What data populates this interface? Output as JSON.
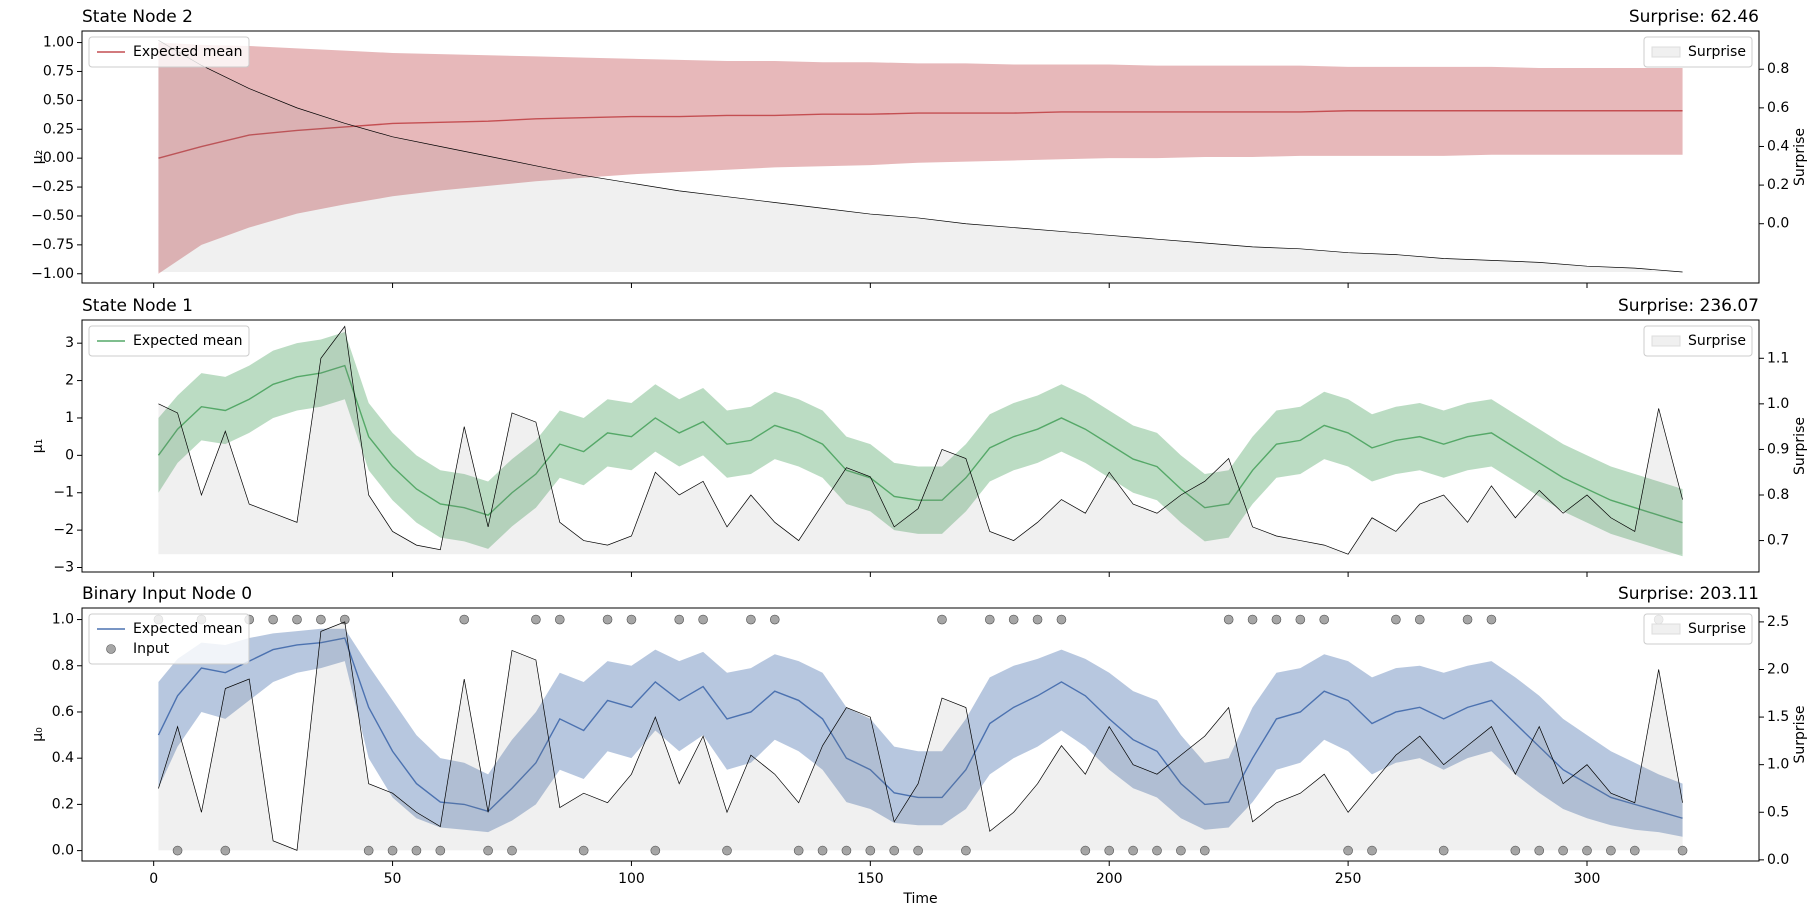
{
  "chart_data": [
    {
      "type": "line",
      "title": "State Node 2",
      "surprise_title": "Surprise: 62.46",
      "ylabel": "μ₂",
      "y2label": "Surprise",
      "legend": "upper left",
      "legend2": "upper right",
      "x": [
        1,
        10,
        20,
        30,
        40,
        50,
        60,
        70,
        80,
        90,
        100,
        110,
        120,
        130,
        140,
        150,
        160,
        170,
        180,
        190,
        200,
        210,
        220,
        230,
        240,
        250,
        260,
        270,
        280,
        290,
        300,
        310,
        320
      ],
      "series": [
        {
          "name": "Expected mean",
          "type": "line",
          "color": "#c44e52",
          "values": [
            0,
            0.1,
            0.2,
            0.24,
            0.27,
            0.3,
            0.31,
            0.32,
            0.34,
            0.35,
            0.36,
            0.36,
            0.37,
            0.37,
            0.38,
            0.38,
            0.39,
            0.39,
            0.39,
            0.4,
            0.4,
            0.4,
            0.4,
            0.4,
            0.4,
            0.41,
            0.41,
            0.41,
            0.41,
            0.41,
            0.41,
            0.41,
            0.41
          ],
          "upper": [
            1.0,
            0.98,
            0.97,
            0.95,
            0.93,
            0.91,
            0.9,
            0.89,
            0.88,
            0.87,
            0.86,
            0.85,
            0.84,
            0.84,
            0.83,
            0.83,
            0.82,
            0.82,
            0.81,
            0.81,
            0.81,
            0.8,
            0.8,
            0.8,
            0.8,
            0.79,
            0.79,
            0.79,
            0.79,
            0.78,
            0.78,
            0.78,
            0.78
          ],
          "lower": [
            -1.0,
            -0.75,
            -0.6,
            -0.48,
            -0.4,
            -0.33,
            -0.28,
            -0.24,
            -0.2,
            -0.17,
            -0.14,
            -0.12,
            -0.1,
            -0.08,
            -0.07,
            -0.06,
            -0.04,
            -0.03,
            -0.02,
            -0.01,
            0,
            0,
            0.01,
            0.01,
            0.02,
            0.02,
            0.02,
            0.02,
            0.03,
            0.03,
            0.03,
            0.03,
            0.03
          ]
        },
        {
          "name": "Surprise",
          "type": "area",
          "axis": "y2",
          "color": "#000000",
          "values": [
            0.95,
            0.82,
            0.7,
            0.6,
            0.52,
            0.45,
            0.4,
            0.35,
            0.3,
            0.25,
            0.21,
            0.17,
            0.14,
            0.11,
            0.08,
            0.05,
            0.03,
            0.0,
            -0.02,
            -0.04,
            -0.06,
            -0.08,
            -0.1,
            -0.12,
            -0.13,
            -0.15,
            -0.16,
            -0.18,
            -0.19,
            -0.2,
            -0.22,
            -0.23,
            -0.25
          ]
        }
      ],
      "ylim": [
        -1.08,
        1.1
      ],
      "yticks": [
        {
          "value": -1,
          "label": "−1.00"
        },
        {
          "value": -0.75,
          "label": "−0.75"
        },
        {
          "value": -0.5,
          "label": "−0.50"
        },
        {
          "value": -0.25,
          "label": "−0.25"
        },
        {
          "value": 0,
          "label": "0.00"
        },
        0.25,
        {
          "value": 0.5,
          "label": "0.50"
        },
        0.75,
        {
          "value": 1,
          "label": "1.00"
        }
      ],
      "y2lim": [
        -0.307,
        0.998
      ],
      "y2ticks": [
        {
          "value": 0,
          "label": "0.0"
        },
        0.2,
        0.4,
        0.6,
        0.8
      ]
    },
    {
      "type": "line",
      "title": "State Node 1",
      "surprise_title": "Surprise: 236.07",
      "ylabel": "μ₁",
      "y2label": "Surprise",
      "legend": "upper left",
      "legend2": "upper right",
      "x": [
        1,
        5,
        10,
        15,
        20,
        25,
        30,
        35,
        40,
        45,
        50,
        55,
        60,
        65,
        70,
        75,
        80,
        85,
        90,
        95,
        100,
        105,
        110,
        115,
        120,
        125,
        130,
        135,
        140,
        145,
        150,
        155,
        160,
        165,
        170,
        175,
        180,
        185,
        190,
        195,
        200,
        205,
        210,
        215,
        220,
        225,
        230,
        235,
        240,
        245,
        250,
        255,
        260,
        265,
        270,
        275,
        280,
        285,
        290,
        295,
        300,
        305,
        310,
        315,
        320
      ],
      "series": [
        {
          "name": "Expected mean",
          "type": "line",
          "color": "#55a868",
          "values": [
            0,
            0.7,
            1.3,
            1.2,
            1.5,
            1.9,
            2.1,
            2.2,
            2.4,
            0.5,
            -0.3,
            -0.9,
            -1.3,
            -1.4,
            -1.6,
            -1.0,
            -0.5,
            0.3,
            0.1,
            0.6,
            0.5,
            1.0,
            0.6,
            0.9,
            0.3,
            0.4,
            0.8,
            0.6,
            0.3,
            -0.4,
            -0.6,
            -1.1,
            -1.2,
            -1.2,
            -0.6,
            0.2,
            0.5,
            0.7,
            1.0,
            0.7,
            0.3,
            -0.1,
            -0.3,
            -0.9,
            -1.4,
            -1.3,
            -0.4,
            0.3,
            0.4,
            0.8,
            0.6,
            0.2,
            0.4,
            0.5,
            0.3,
            0.5,
            0.6,
            0.2,
            -0.2,
            -0.6,
            -0.9,
            -1.2,
            -1.4,
            -1.6,
            -1.8
          ],
          "upper": [
            1.0,
            1.6,
            2.2,
            2.1,
            2.4,
            2.8,
            3.0,
            3.1,
            3.3,
            1.4,
            0.6,
            0.0,
            -0.4,
            -0.5,
            -0.7,
            -0.1,
            0.4,
            1.2,
            1.0,
            1.5,
            1.4,
            1.9,
            1.5,
            1.8,
            1.2,
            1.3,
            1.7,
            1.5,
            1.2,
            0.5,
            0.3,
            -0.2,
            -0.3,
            -0.3,
            0.3,
            1.1,
            1.4,
            1.6,
            1.9,
            1.6,
            1.2,
            0.8,
            0.6,
            0.0,
            -0.5,
            -0.4,
            0.5,
            1.2,
            1.3,
            1.7,
            1.5,
            1.1,
            1.3,
            1.4,
            1.2,
            1.4,
            1.5,
            1.1,
            0.7,
            0.3,
            0.0,
            -0.3,
            -0.5,
            -0.7,
            -0.9
          ],
          "lower": [
            -1.0,
            -0.2,
            0.4,
            0.3,
            0.6,
            1.0,
            1.2,
            1.3,
            1.5,
            -0.4,
            -1.2,
            -1.8,
            -2.2,
            -2.3,
            -2.5,
            -1.9,
            -1.4,
            -0.6,
            -0.8,
            -0.3,
            -0.4,
            0.1,
            -0.3,
            0.0,
            -0.6,
            -0.5,
            -0.1,
            -0.3,
            -0.6,
            -1.3,
            -1.5,
            -2.0,
            -2.1,
            -2.1,
            -1.5,
            -0.7,
            -0.4,
            -0.2,
            0.1,
            -0.2,
            -0.6,
            -1.0,
            -1.2,
            -1.8,
            -2.3,
            -2.2,
            -1.3,
            -0.6,
            -0.5,
            -0.1,
            -0.3,
            -0.7,
            -0.5,
            -0.4,
            -0.6,
            -0.4,
            -0.3,
            -0.7,
            -1.1,
            -1.5,
            -1.8,
            -2.1,
            -2.3,
            -2.5,
            -2.7
          ]
        },
        {
          "name": "Surprise",
          "type": "area",
          "axis": "y2",
          "color": "#000000",
          "values": [
            1.0,
            0.98,
            0.8,
            0.94,
            0.78,
            0.76,
            0.74,
            1.1,
            1.17,
            0.8,
            0.72,
            0.69,
            0.68,
            0.95,
            0.73,
            0.98,
            0.96,
            0.74,
            0.7,
            0.69,
            0.71,
            0.85,
            0.8,
            0.83,
            0.73,
            0.8,
            0.74,
            0.7,
            0.78,
            0.86,
            0.84,
            0.73,
            0.77,
            0.9,
            0.88,
            0.72,
            0.7,
            0.74,
            0.79,
            0.76,
            0.85,
            0.78,
            0.76,
            0.8,
            0.83,
            0.88,
            0.73,
            0.71,
            0.7,
            0.69,
            0.67,
            0.75,
            0.72,
            0.78,
            0.8,
            0.74,
            0.82,
            0.75,
            0.81,
            0.76,
            0.8,
            0.75,
            0.72,
            0.99,
            0.79
          ]
        }
      ],
      "ylim": [
        -3.12,
        3.62
      ],
      "yticks": [
        {
          "value": -3,
          "label": "−3"
        },
        {
          "value": -2,
          "label": "−2"
        },
        {
          "value": -1,
          "label": "−1"
        },
        0,
        1,
        2,
        3
      ],
      "y2lim": [
        0.631,
        1.184
      ],
      "y2ticks": [
        0.7,
        0.8,
        0.9,
        {
          "value": 1,
          "label": "1.0"
        },
        1.1
      ]
    },
    {
      "type": "line",
      "title": "Binary Input Node 0",
      "surprise_title": "Surprise: 203.11",
      "ylabel": "μ₀",
      "y2label": "Surprise",
      "xlabel": "Time",
      "legend": "upper left",
      "legend2": "upper right",
      "x": [
        1,
        5,
        10,
        15,
        20,
        25,
        30,
        35,
        40,
        45,
        50,
        55,
        60,
        65,
        70,
        75,
        80,
        85,
        90,
        95,
        100,
        105,
        110,
        115,
        120,
        125,
        130,
        135,
        140,
        145,
        150,
        155,
        160,
        165,
        170,
        175,
        180,
        185,
        190,
        195,
        200,
        205,
        210,
        215,
        220,
        225,
        230,
        235,
        240,
        245,
        250,
        255,
        260,
        265,
        270,
        275,
        280,
        285,
        290,
        295,
        300,
        305,
        310,
        315,
        320
      ],
      "series": [
        {
          "name": "Expected mean",
          "type": "line",
          "color": "#4c72b0",
          "values": [
            0.5,
            0.67,
            0.79,
            0.77,
            0.82,
            0.87,
            0.89,
            0.9,
            0.92,
            0.62,
            0.43,
            0.29,
            0.21,
            0.2,
            0.17,
            0.27,
            0.38,
            0.57,
            0.52,
            0.65,
            0.62,
            0.73,
            0.65,
            0.71,
            0.57,
            0.6,
            0.69,
            0.65,
            0.57,
            0.4,
            0.35,
            0.25,
            0.23,
            0.23,
            0.35,
            0.55,
            0.62,
            0.67,
            0.73,
            0.67,
            0.57,
            0.48,
            0.43,
            0.29,
            0.2,
            0.21,
            0.4,
            0.57,
            0.6,
            0.69,
            0.65,
            0.55,
            0.6,
            0.62,
            0.57,
            0.62,
            0.65,
            0.55,
            0.45,
            0.35,
            0.29,
            0.23,
            0.2,
            0.17,
            0.14
          ],
          "upper": [
            0.73,
            0.83,
            0.9,
            0.89,
            0.92,
            0.94,
            0.95,
            0.96,
            0.96,
            0.8,
            0.65,
            0.5,
            0.4,
            0.38,
            0.33,
            0.48,
            0.6,
            0.77,
            0.73,
            0.82,
            0.8,
            0.87,
            0.82,
            0.86,
            0.77,
            0.79,
            0.85,
            0.82,
            0.77,
            0.62,
            0.57,
            0.45,
            0.43,
            0.43,
            0.57,
            0.75,
            0.8,
            0.83,
            0.87,
            0.83,
            0.77,
            0.69,
            0.65,
            0.5,
            0.38,
            0.4,
            0.62,
            0.77,
            0.79,
            0.85,
            0.82,
            0.75,
            0.79,
            0.8,
            0.77,
            0.8,
            0.82,
            0.75,
            0.67,
            0.57,
            0.5,
            0.43,
            0.38,
            0.33,
            0.29
          ],
          "lower": [
            0.27,
            0.45,
            0.6,
            0.57,
            0.65,
            0.73,
            0.77,
            0.79,
            0.82,
            0.4,
            0.23,
            0.14,
            0.1,
            0.09,
            0.08,
            0.13,
            0.2,
            0.35,
            0.31,
            0.43,
            0.4,
            0.52,
            0.43,
            0.5,
            0.35,
            0.38,
            0.48,
            0.43,
            0.35,
            0.21,
            0.18,
            0.12,
            0.11,
            0.11,
            0.18,
            0.33,
            0.4,
            0.45,
            0.52,
            0.45,
            0.35,
            0.27,
            0.23,
            0.14,
            0.09,
            0.1,
            0.21,
            0.35,
            0.38,
            0.48,
            0.43,
            0.33,
            0.38,
            0.4,
            0.35,
            0.4,
            0.43,
            0.33,
            0.25,
            0.18,
            0.14,
            0.11,
            0.09,
            0.08,
            0.06
          ]
        },
        {
          "name": "Input",
          "type": "scatter",
          "color": "#808080",
          "values": [
            1,
            0,
            1,
            0,
            1,
            1,
            1,
            1,
            1,
            0,
            0,
            0,
            0,
            1,
            0,
            0,
            1,
            1,
            0,
            1,
            1,
            0,
            1,
            1,
            0,
            1,
            1,
            0,
            0,
            0,
            0,
            0,
            0,
            1,
            0,
            1,
            1,
            1,
            1,
            0,
            0,
            0,
            0,
            0,
            0,
            1,
            1,
            1,
            1,
            1,
            0,
            0,
            1,
            1,
            0,
            1,
            1,
            0,
            0,
            0,
            0,
            0,
            0,
            1,
            0
          ]
        },
        {
          "name": "Surprise",
          "type": "area",
          "axis": "y2",
          "color": "#000000",
          "values": [
            0.75,
            1.4,
            0.5,
            1.8,
            1.9,
            0.2,
            0.1,
            2.4,
            2.5,
            0.8,
            0.7,
            0.5,
            0.35,
            1.9,
            0.5,
            2.2,
            2.1,
            0.55,
            0.7,
            0.6,
            0.9,
            1.5,
            0.8,
            1.3,
            0.5,
            1.1,
            0.9,
            0.6,
            1.2,
            1.6,
            1.5,
            0.4,
            0.8,
            1.7,
            1.6,
            0.3,
            0.5,
            0.8,
            1.2,
            0.9,
            1.4,
            1.0,
            0.9,
            1.1,
            1.3,
            1.6,
            0.4,
            0.6,
            0.7,
            0.9,
            0.5,
            0.8,
            1.1,
            1.3,
            1.0,
            1.2,
            1.4,
            0.9,
            1.4,
            0.8,
            1.0,
            0.7,
            0.6,
            2.0,
            0.6
          ]
        }
      ],
      "ylim": [
        -0.045,
        1.05
      ],
      "yticks": [
        {
          "value": 0,
          "label": "0.0"
        },
        0.2,
        0.4,
        0.6,
        0.8,
        {
          "value": 1,
          "label": "1.0"
        }
      ],
      "y2lim": [
        -0.012,
        2.646
      ],
      "y2ticks": [
        {
          "value": 0,
          "label": "0.0"
        },
        0.5,
        {
          "value": 1,
          "label": "1.0"
        },
        1.5,
        {
          "value": 2,
          "label": "2.0"
        },
        2.5
      ],
      "xlim": [
        -15,
        336
      ],
      "xticks": [
        0,
        50,
        100,
        150,
        200,
        250,
        300
      ]
    }
  ]
}
